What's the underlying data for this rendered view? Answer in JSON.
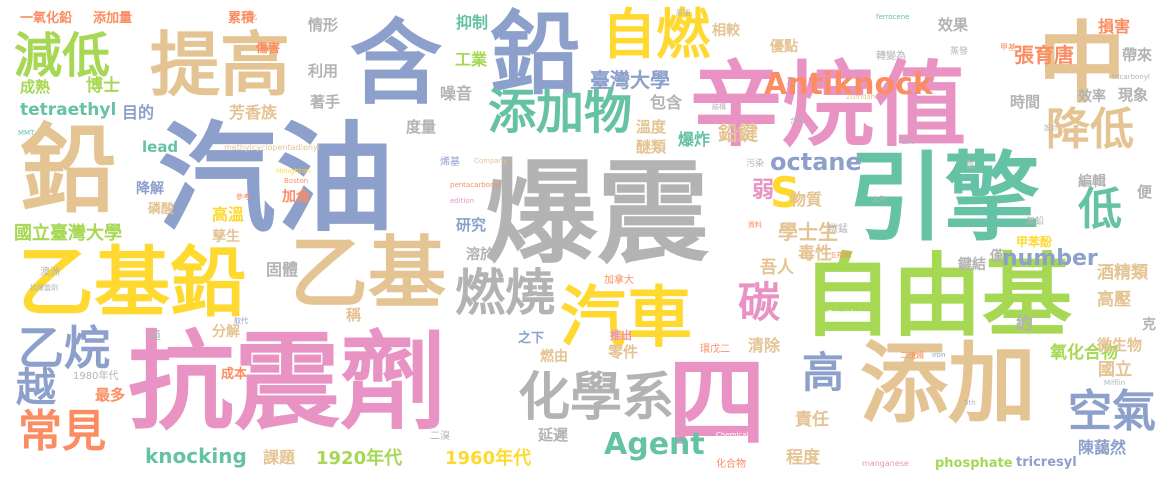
{
  "palette": {
    "pink": "#e893c4",
    "blue": "#8da0cb",
    "tan": "#e5c494",
    "gray": "#b3b3b3",
    "green": "#66c2a5",
    "lime": "#a6d854",
    "yellow": "#ffd92f",
    "orange": "#fc8d62"
  },
  "words": [
    "爆震",
    "抗震劑",
    "汽油",
    "辛烷值",
    "鉛",
    "引擎",
    "自由基",
    "含",
    "提高",
    "鉛",
    "乙基鉛",
    "添加",
    "中",
    "乙基",
    "四",
    "汽車",
    "添加物",
    "化學系",
    "自燃",
    "燃燒",
    "減低",
    "Antiknock",
    "降低",
    "常見",
    "空氣",
    "乙烷",
    "Agent",
    "碳",
    "高",
    "低",
    "越",
    "S",
    "octane",
    "knocking",
    "1920年代",
    "1960年代",
    "number",
    "國立臺灣大學",
    "臺灣大學",
    "張育唐",
    "tetraethyl",
    "鉛鍵",
    "學士生",
    "毒性",
    "吾人",
    "酒精類",
    "高壓",
    "氧化合物",
    "微生物",
    "國立",
    "責任",
    "程度",
    "陳藹然",
    "tricresyl",
    "phosphate",
    "課題",
    "最多",
    "成本",
    "延遲",
    "零件",
    "燃由",
    "推出",
    "清除",
    "之下",
    "分解",
    "固體",
    "研究",
    "溶於",
    "稱",
    "弱",
    "物質",
    "高溫",
    "孳生",
    "加侖",
    "降解",
    "磷酸",
    "lead",
    "成熟",
    "博士",
    "目的",
    "芳香族",
    "利用",
    "著手",
    "度量",
    "噪音",
    "包含",
    "溫度",
    "醚類",
    "爆炸",
    "工業",
    "抑制",
    "情形",
    "一氧化鉛",
    "添加量",
    "累積",
    "傷害",
    "相較",
    "優點",
    "損害",
    "帶來",
    "現象",
    "效率",
    "時間",
    "效果",
    "編輯",
    "便",
    "鍵結",
    "約",
    "克",
    "甲苯酚",
    "僅",
    "1980年代",
    "澳洲",
    "抗爆震劑",
    "MMT",
    "methylcyclopentadienyl",
    "Houghton",
    "Boston",
    "pentacarbonyl",
    "Company",
    "edition",
    "加拿大",
    "環戊二",
    "ferrocene",
    "tricarbonyl",
    "Zumdahl",
    "manganese",
    "iron",
    "Chemical",
    "5th",
    "Mifflin",
    "Principles",
    "化合物",
    "二溴",
    "烯基",
    "羰錳",
    "五羰鐵",
    "二茂鐵",
    "轉變為",
    "蒸發",
    "甲基",
    "之外",
    "無鉛",
    "氯",
    "老式",
    "設計",
    "資料",
    "參考",
    "取代",
    "污染",
    "極",
    "原理",
    "合物",
    "結構",
    "二",
    "化"
  ]
}
